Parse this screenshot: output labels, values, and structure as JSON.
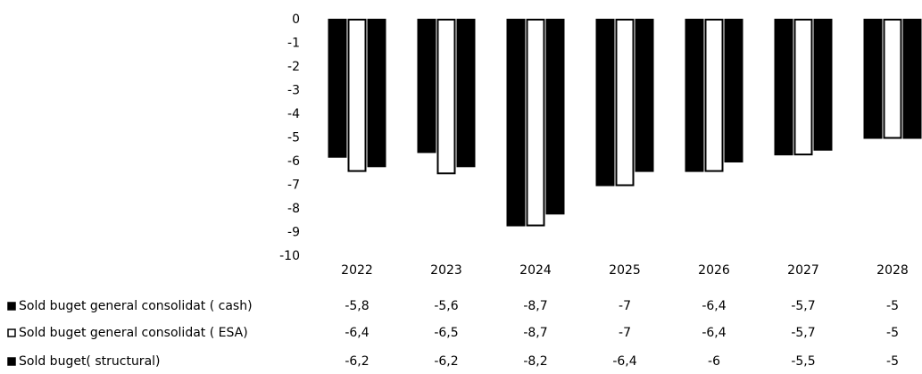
{
  "chart_data": {
    "type": "bar",
    "categories": [
      "2022",
      "2023",
      "2024",
      "2025",
      "2026",
      "2027",
      "2028"
    ],
    "series": [
      {
        "name": "Sold  buget general consolidat ( cash)",
        "color": "#000000",
        "values": [
          -5.8,
          -5.6,
          -8.7,
          -7,
          -6.4,
          -5.7,
          -5
        ],
        "value_labels": [
          "-5,8",
          "-5,6",
          "-8,7",
          "-7",
          "-6,4",
          "-5,7",
          "-5"
        ]
      },
      {
        "name": "Sold  buget general consolidat ( ESA)",
        "color": "#ffffff",
        "values": [
          -6.4,
          -6.5,
          -8.7,
          -7,
          -6.4,
          -5.7,
          -5
        ],
        "value_labels": [
          "-6,4",
          "-6,5",
          "-8,7",
          "-7",
          "-6,4",
          "-5,7",
          "-5"
        ]
      },
      {
        "name": "Sold  buget( structural)",
        "color": "#000000",
        "values": [
          -6.2,
          -6.2,
          -8.2,
          -6.4,
          -6,
          -5.5,
          -5
        ],
        "value_labels": [
          "-6,2",
          "-6,2",
          "-8,2",
          "-6,4",
          "-6",
          "-5,5",
          "-5"
        ]
      }
    ],
    "ylim": [
      -10,
      0
    ],
    "yticks": [
      0,
      -1,
      -2,
      -3,
      -4,
      -5,
      -6,
      -7,
      -8,
      -9,
      -10
    ]
  }
}
